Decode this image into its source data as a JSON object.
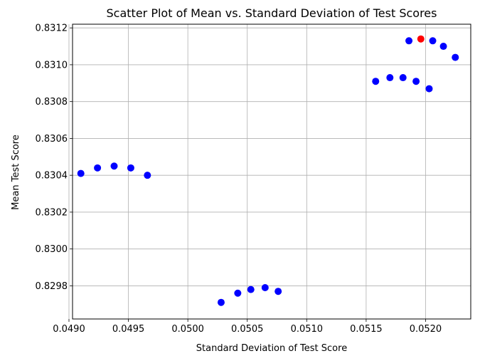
{
  "chart_data": {
    "type": "scatter",
    "title": "Scatter Plot of Mean vs. Standard Deviation of Test Scores",
    "xlabel": "Standard Deviation of Test Score",
    "ylabel": "Mean Test Score",
    "xlim": [
      0.04903,
      0.05238
    ],
    "ylim": [
      0.82962,
      0.83122
    ],
    "xticks": [
      0.049,
      0.0495,
      0.05,
      0.0505,
      0.051,
      0.0515,
      0.052
    ],
    "xtick_labels": [
      "0.0490",
      "0.0495",
      "0.0500",
      "0.0505",
      "0.0510",
      "0.0515",
      "0.0520"
    ],
    "yticks": [
      0.8298,
      0.83,
      0.8302,
      0.8304,
      0.8306,
      0.8308,
      0.831,
      0.8312
    ],
    "ytick_labels": [
      "0.8298",
      "0.8300",
      "0.8302",
      "0.8304",
      "0.8306",
      "0.8308",
      "0.8310",
      "0.8312"
    ],
    "grid": true,
    "colors": {
      "default": "#0000ff",
      "highlight": "#ff0000"
    },
    "points": [
      {
        "x": 0.0491,
        "y": 0.83041
      },
      {
        "x": 0.04924,
        "y": 0.83044
      },
      {
        "x": 0.04938,
        "y": 0.83045
      },
      {
        "x": 0.04952,
        "y": 0.83044
      },
      {
        "x": 0.04966,
        "y": 0.8304
      },
      {
        "x": 0.05028,
        "y": 0.82971
      },
      {
        "x": 0.05042,
        "y": 0.82976
      },
      {
        "x": 0.05053,
        "y": 0.82978
      },
      {
        "x": 0.05065,
        "y": 0.82979
      },
      {
        "x": 0.05076,
        "y": 0.82977
      },
      {
        "x": 0.05158,
        "y": 0.83091
      },
      {
        "x": 0.0517,
        "y": 0.83093
      },
      {
        "x": 0.05181,
        "y": 0.83093
      },
      {
        "x": 0.05192,
        "y": 0.83091
      },
      {
        "x": 0.05203,
        "y": 0.83087
      },
      {
        "x": 0.05186,
        "y": 0.83113
      },
      {
        "x": 0.05196,
        "y": 0.83114,
        "highlight": true
      },
      {
        "x": 0.05206,
        "y": 0.83113
      },
      {
        "x": 0.05215,
        "y": 0.8311
      },
      {
        "x": 0.05225,
        "y": 0.83104
      }
    ]
  }
}
